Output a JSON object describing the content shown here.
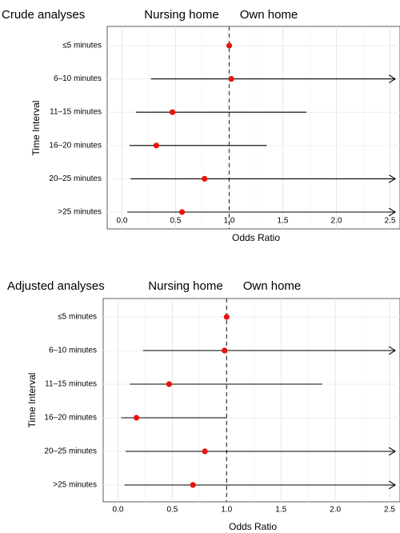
{
  "chart_data": [
    {
      "type": "forest",
      "panel_title": "Crude analyses",
      "left_header": "Nursing home",
      "right_header": "Own home",
      "xlabel": "Odds Ratio",
      "ylabel": "Time Interval",
      "xlim": [
        -0.12,
        2.55
      ],
      "xticks": [
        0.0,
        0.5,
        1.0,
        1.5,
        2.0,
        2.5
      ],
      "tick_labels": [
        "0.0",
        "0.5",
        "1.0",
        "1.5",
        "2.0",
        "2.5"
      ],
      "reference_line": 1.0,
      "grid": true,
      "categories": [
        "≤5 minutes",
        "6–10 minutes",
        "11–15 minutes",
        "16–20 minutes",
        "20–25 minutes",
        ">25 minutes"
      ],
      "estimates": [
        1.0,
        1.02,
        0.47,
        0.32,
        0.77,
        0.56
      ],
      "lower": [
        null,
        0.27,
        0.13,
        0.07,
        0.08,
        0.05
      ],
      "upper": [
        null,
        2.55,
        1.72,
        1.35,
        2.55,
        2.55
      ],
      "upper_truncated": [
        false,
        true,
        false,
        false,
        true,
        true
      ],
      "point_color": "#e8130c"
    },
    {
      "type": "forest",
      "panel_title": "Adjusted analyses",
      "left_header": "Nursing home",
      "right_header": "Own home",
      "xlabel": "Odds Ratio",
      "ylabel": "Time Interval",
      "xlim": [
        -0.12,
        2.55
      ],
      "xticks": [
        0.0,
        0.5,
        1.0,
        1.5,
        2.0,
        2.5
      ],
      "tick_labels": [
        "0.0",
        "0.5",
        "1.0",
        "1.5",
        "2.0",
        "2.5"
      ],
      "reference_line": 1.0,
      "grid": true,
      "categories": [
        "≤5 minutes",
        "6–10 minutes",
        "11–15 minutes",
        "16–20 minutes",
        "20–25 minutes",
        ">25 minutes"
      ],
      "estimates": [
        1.0,
        0.98,
        0.47,
        0.17,
        0.8,
        0.69
      ],
      "lower": [
        null,
        0.23,
        0.11,
        0.03,
        0.07,
        0.06
      ],
      "upper": [
        null,
        2.55,
        1.88,
        1.0,
        2.55,
        2.55
      ],
      "upper_truncated": [
        false,
        true,
        false,
        false,
        true,
        true
      ],
      "point_color": "#e8130c"
    }
  ]
}
